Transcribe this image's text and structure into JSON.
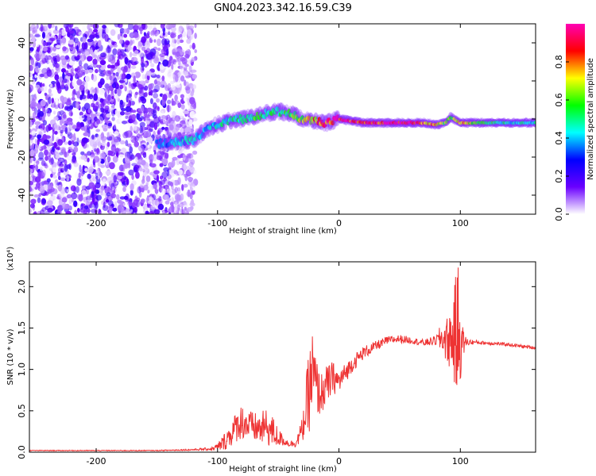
{
  "title": "GN04.2023.342.16.59.C39",
  "chart_data": [
    {
      "type": "heatmap",
      "xlabel": "Height of straight line (km)",
      "ylabel": "Frequency (Hz)",
      "xlim": [
        -255,
        162
      ],
      "ylim": [
        -50,
        50
      ],
      "xticks": [
        -200,
        -100,
        0,
        100
      ],
      "yticks": [
        -40,
        -20,
        0,
        20,
        40
      ],
      "colorbar": {
        "label": "Normalized spectral amplitude",
        "range": [
          0,
          1
        ],
        "ticks": [
          "0.0",
          "0.2",
          "0.4",
          "0.6",
          "0.8"
        ],
        "colors": [
          "#ffffff",
          "#6a00ff",
          "#0000ff",
          "#00ffff",
          "#00ff00",
          "#ffff00",
          "#ff0000",
          "#ff00b4"
        ]
      },
      "noise_region_x": [
        -255,
        -118
      ],
      "ridge": {
        "x": [
          -150,
          -135,
          -120,
          -110,
          -100,
          -90,
          -80,
          -70,
          -60,
          -50,
          -40,
          -30,
          -20,
          -10,
          0,
          20,
          40,
          60,
          70,
          80,
          88,
          92,
          100,
          120,
          140,
          162
        ],
        "freq": [
          -13,
          -12,
          -11,
          -6,
          -3,
          -1,
          0,
          1,
          3,
          4,
          3,
          0,
          -1,
          -2,
          0,
          -2,
          -2,
          -2,
          -2,
          -3,
          -2,
          1,
          -2,
          -2,
          -2,
          -2
        ],
        "amplitude": [
          0.35,
          0.4,
          0.45,
          0.4,
          0.45,
          0.5,
          0.5,
          0.55,
          0.55,
          0.5,
          0.6,
          0.65,
          0.75,
          0.9,
          0.95,
          0.9,
          0.95,
          0.95,
          0.85,
          0.75,
          0.6,
          0.6,
          0.75,
          0.6,
          0.45,
          0.45
        ]
      }
    },
    {
      "type": "line",
      "xlabel": "Height of straight line (km)",
      "ylabel": "SNR (10 * v/v)",
      "yscale_label": "(x10⁴)",
      "xlim": [
        -255,
        162
      ],
      "ylim": [
        0,
        2.3
      ],
      "xticks": [
        -200,
        -100,
        0,
        100
      ],
      "yticks": [
        0.0,
        0.5,
        1.0,
        1.5,
        2.0
      ],
      "series_color": "#ee3333",
      "envelope": {
        "x": [
          -255,
          -150,
          -120,
          -105,
          -100,
          -95,
          -90,
          -85,
          -80,
          -75,
          -70,
          -65,
          -60,
          -55,
          -50,
          -45,
          -40,
          -35,
          -30,
          -25,
          -22,
          -20,
          -18,
          -15,
          -10,
          -5,
          0,
          5,
          10,
          20,
          30,
          40,
          50,
          60,
          70,
          80,
          85,
          90,
          95,
          98,
          100,
          102,
          105,
          110,
          120,
          130,
          140,
          150,
          162
        ],
        "y": [
          0.02,
          0.02,
          0.03,
          0.04,
          0.06,
          0.12,
          0.2,
          0.3,
          0.38,
          0.32,
          0.3,
          0.28,
          0.3,
          0.25,
          0.18,
          0.13,
          0.1,
          0.12,
          0.28,
          0.7,
          0.95,
          0.85,
          0.75,
          0.7,
          0.8,
          0.9,
          0.85,
          0.95,
          1.05,
          1.2,
          1.28,
          1.35,
          1.37,
          1.35,
          1.32,
          1.35,
          1.38,
          1.35,
          1.4,
          1.45,
          1.35,
          1.33,
          1.33,
          1.33,
          1.32,
          1.31,
          1.3,
          1.28,
          1.26
        ],
        "amp": [
          0.005,
          0.005,
          0.01,
          0.02,
          0.05,
          0.1,
          0.15,
          0.18,
          0.22,
          0.2,
          0.18,
          0.2,
          0.22,
          0.2,
          0.12,
          0.05,
          0.04,
          0.06,
          0.15,
          0.5,
          0.55,
          0.45,
          0.35,
          0.25,
          0.25,
          0.2,
          0.15,
          0.12,
          0.1,
          0.08,
          0.06,
          0.05,
          0.05,
          0.04,
          0.04,
          0.06,
          0.2,
          0.3,
          0.6,
          0.9,
          0.5,
          0.2,
          0.05,
          0.03,
          0.02,
          0.02,
          0.02,
          0.02,
          0.02
        ]
      }
    }
  ]
}
